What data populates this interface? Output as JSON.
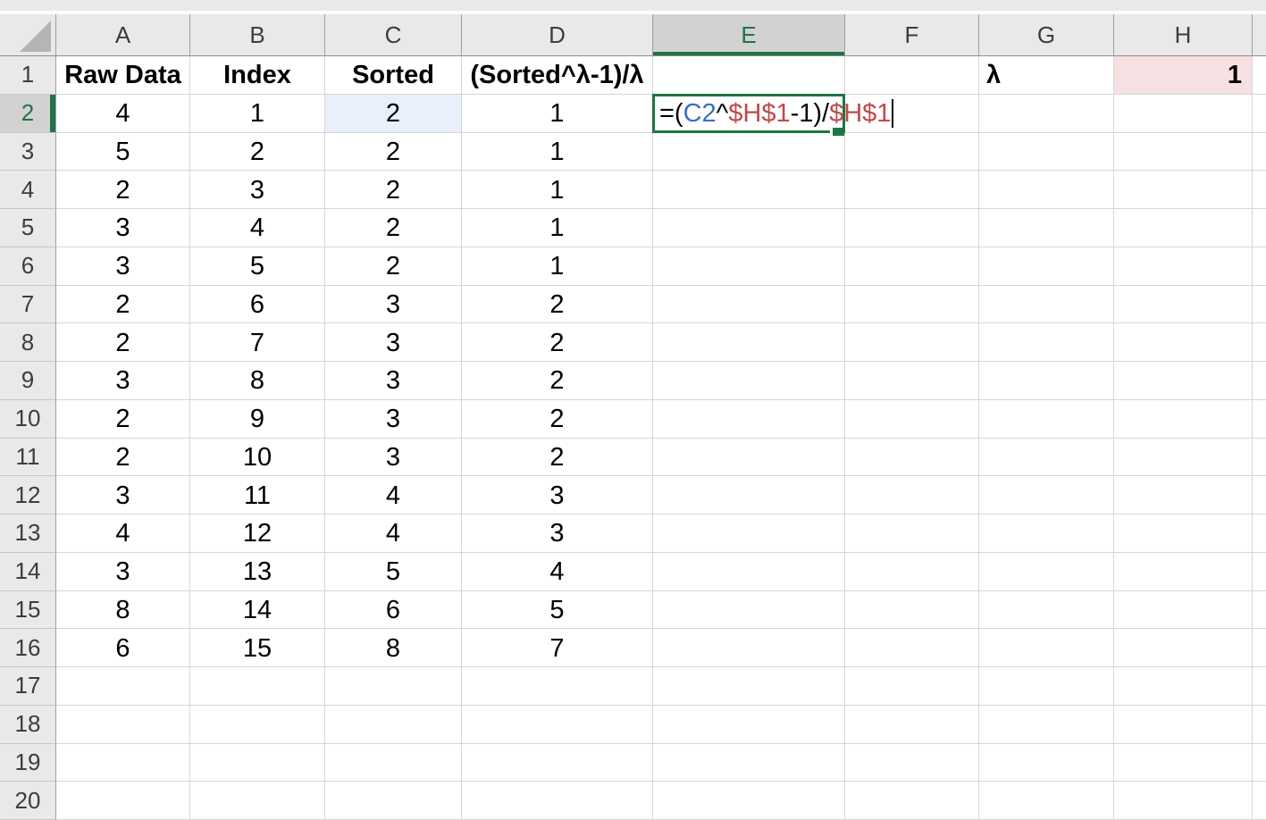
{
  "colors": {
    "accent_green": "#217346",
    "reference_blue": "#3e6ec5",
    "reference_blue_fill": "#e9effb",
    "reference_red": "#bf4a4a",
    "reference_red_fill": "#f7e0e1",
    "formula_text_black": "#000000",
    "header_bg": "#e9e9e9",
    "header_active_bg": "#d2d2d2",
    "gridline": "#d6d6d6"
  },
  "sheet": {
    "column_letters": [
      "A",
      "B",
      "C",
      "D",
      "E",
      "F",
      "G",
      "H"
    ],
    "row_numbers": [
      1,
      2,
      3,
      4,
      5,
      6,
      7,
      8,
      9,
      10,
      11,
      12,
      13,
      14,
      15,
      16,
      17,
      18,
      19,
      20
    ],
    "active_column": "E",
    "active_row": 2,
    "cells": {
      "A1": "Raw Data",
      "B1": "Index",
      "C1": "Sorted",
      "D1": "(Sorted^λ-1)/λ",
      "G1": "λ",
      "H1": "1",
      "A2": "4",
      "B2": "1",
      "C2": "2",
      "D2": "1",
      "A3": "5",
      "B3": "2",
      "C3": "2",
      "D3": "1",
      "A4": "2",
      "B4": "3",
      "C4": "2",
      "D4": "1",
      "A5": "3",
      "B5": "4",
      "C5": "2",
      "D5": "1",
      "A6": "3",
      "B6": "5",
      "C6": "2",
      "D6": "1",
      "A7": "2",
      "B7": "6",
      "C7": "3",
      "D7": "2",
      "A8": "2",
      "B8": "7",
      "C8": "3",
      "D8": "2",
      "A9": "3",
      "B9": "8",
      "C9": "3",
      "D9": "2",
      "A10": "2",
      "B10": "9",
      "C10": "3",
      "D10": "2",
      "A11": "2",
      "B11": "10",
      "C11": "3",
      "D11": "2",
      "A12": "3",
      "B12": "11",
      "C12": "4",
      "D12": "3",
      "A13": "4",
      "B13": "12",
      "C13": "4",
      "D13": "3",
      "A14": "3",
      "B14": "13",
      "C14": "5",
      "D14": "4",
      "A15": "8",
      "B15": "14",
      "C15": "6",
      "D15": "5",
      "A16": "6",
      "B16": "15",
      "C16": "8",
      "D16": "7"
    },
    "edit": {
      "cell": "E2",
      "formula_segments": [
        {
          "text": "=(",
          "role": "plain"
        },
        {
          "text": "C2",
          "role": "ref1"
        },
        {
          "text": "^",
          "role": "plain"
        },
        {
          "text": "$H$1",
          "role": "ref2"
        },
        {
          "text": "-1)/",
          "role": "plain"
        },
        {
          "text": "$H$1",
          "role": "ref2"
        }
      ],
      "caret_visible": true
    },
    "referenced_cells": [
      {
        "cell": "C2",
        "role": "ref1"
      },
      {
        "cell": "H1",
        "role": "ref2"
      }
    ]
  }
}
